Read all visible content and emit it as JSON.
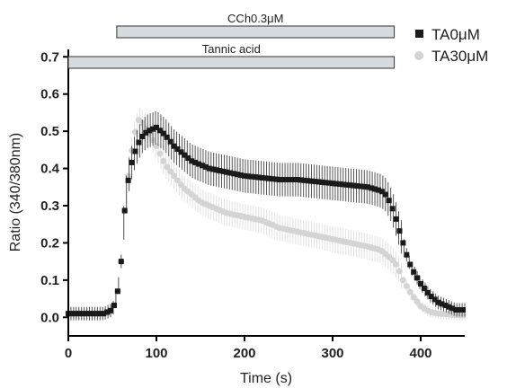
{
  "chart_data": {
    "type": "scatter",
    "title": "",
    "xlabel": "Time (s)",
    "ylabel": "Ratio (340/380nm)",
    "xlim": [
      0,
      450
    ],
    "ylim": [
      -0.05,
      0.72
    ],
    "x_ticks": [
      0,
      100,
      200,
      300,
      400
    ],
    "y_ticks": [
      0.0,
      0.1,
      0.2,
      0.3,
      0.4,
      0.5,
      0.6,
      0.7
    ],
    "x_tick_labels": [
      "0",
      "100",
      "200",
      "300",
      "400"
    ],
    "y_tick_labels": [
      "0.0",
      "0.1",
      "0.2",
      "0.3",
      "0.4",
      "0.5",
      "0.6",
      "0.7"
    ],
    "legend_position": "top-right",
    "treatment_bars": [
      {
        "label": "CCh0.3μM",
        "x_start": 55,
        "x_end": 370
      },
      {
        "label": "Tannic acid",
        "x_start": 0,
        "x_end": 370
      }
    ],
    "series": [
      {
        "name": "TA0μM",
        "marker": "square",
        "color": "#1a1a1a",
        "error_color": "#555555",
        "error_band": 0.045,
        "x": [
          0,
          20,
          40,
          50,
          55,
          60,
          62,
          65,
          70,
          75,
          80,
          85,
          90,
          100,
          110,
          120,
          130,
          140,
          150,
          160,
          170,
          180,
          200,
          220,
          240,
          260,
          280,
          300,
          320,
          340,
          355,
          360,
          365,
          370,
          375,
          380,
          385,
          390,
          400,
          410,
          420,
          430,
          440,
          450
        ],
        "y": [
          0.01,
          0.01,
          0.01,
          0.02,
          0.05,
          0.15,
          0.22,
          0.32,
          0.4,
          0.44,
          0.47,
          0.49,
          0.5,
          0.51,
          0.49,
          0.46,
          0.44,
          0.42,
          0.41,
          0.4,
          0.395,
          0.39,
          0.38,
          0.375,
          0.37,
          0.37,
          0.365,
          0.36,
          0.355,
          0.35,
          0.34,
          0.33,
          0.31,
          0.28,
          0.24,
          0.2,
          0.16,
          0.13,
          0.09,
          0.06,
          0.04,
          0.03,
          0.02,
          0.02
        ]
      },
      {
        "name": "TA30μM",
        "marker": "circle",
        "color": "#d4d4d4",
        "error_color": "#e2e2e2",
        "error_band": 0.035,
        "x": [
          0,
          20,
          40,
          50,
          55,
          60,
          62,
          65,
          70,
          75,
          80,
          85,
          90,
          100,
          110,
          120,
          130,
          140,
          150,
          160,
          180,
          200,
          220,
          240,
          260,
          280,
          300,
          320,
          340,
          355,
          360,
          365,
          370,
          375,
          380,
          385,
          390,
          400,
          410,
          420,
          430,
          440,
          450
        ],
        "y": [
          0.01,
          0.01,
          0.01,
          0.02,
          0.05,
          0.15,
          0.22,
          0.32,
          0.42,
          0.49,
          0.53,
          0.52,
          0.5,
          0.46,
          0.41,
          0.38,
          0.35,
          0.33,
          0.31,
          0.3,
          0.28,
          0.27,
          0.26,
          0.24,
          0.23,
          0.22,
          0.21,
          0.2,
          0.19,
          0.18,
          0.17,
          0.16,
          0.15,
          0.13,
          0.1,
          0.08,
          0.06,
          0.03,
          0.015,
          0.01,
          0.008,
          0.006,
          0.005
        ]
      }
    ]
  }
}
